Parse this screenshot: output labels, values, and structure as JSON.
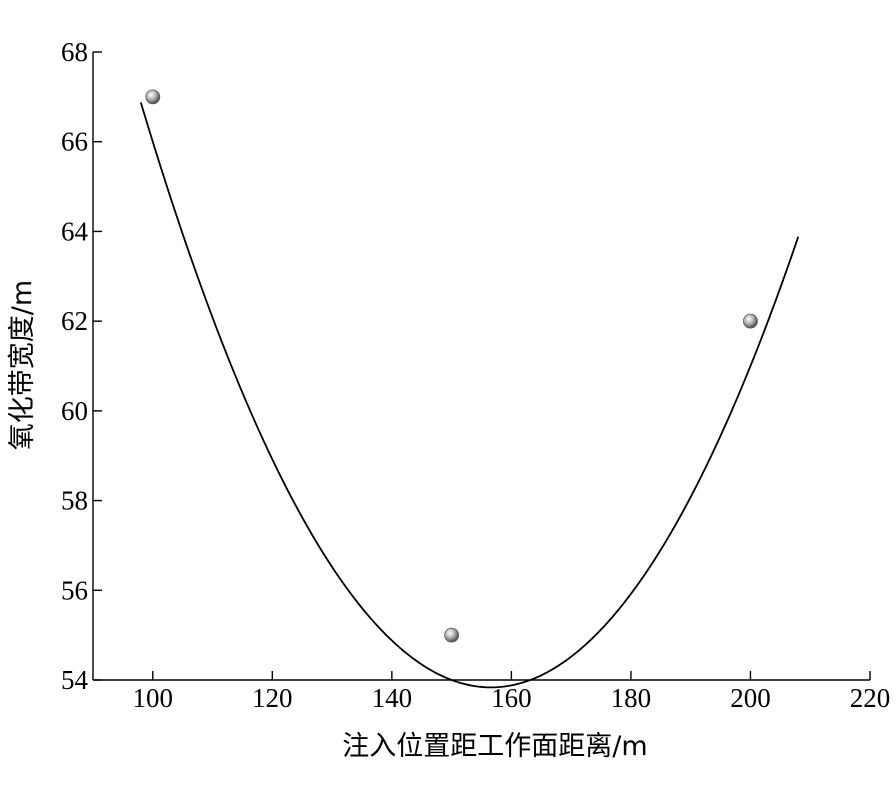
{
  "chart_data": {
    "type": "scatter",
    "xlabel": "注入位置距工作面距离/m",
    "ylabel": "氧化带宽度/m",
    "xlim": [
      90,
      220
    ],
    "ylim": [
      54,
      68
    ],
    "xticks": [
      100,
      120,
      140,
      160,
      180,
      200,
      220
    ],
    "yticks": [
      54,
      56,
      58,
      60,
      62,
      64,
      66,
      68
    ],
    "grid": false,
    "legend": "none",
    "series": [
      {
        "kind": "points",
        "x": [
          100,
          150,
          200
        ],
        "y": [
          67,
          55,
          62
        ],
        "color": "#8c8c8c"
      },
      {
        "kind": "fit-curve",
        "x_range": [
          98,
          208
        ],
        "quadratic_fit": {
          "a": 0.0038,
          "b": -1.19,
          "c": 147.0
        },
        "color": "#000000"
      }
    ]
  }
}
